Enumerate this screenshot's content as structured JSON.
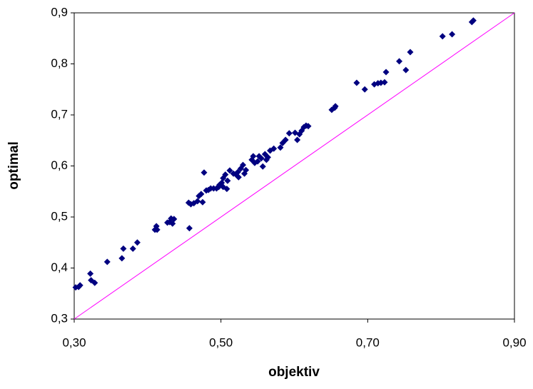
{
  "chart_data": {
    "type": "scatter",
    "x_label": "objektiv",
    "y_label": "optimal",
    "color": "#000080",
    "x": [
      0.302,
      0.306,
      0.308,
      0.322,
      0.323,
      0.328,
      0.345,
      0.365,
      0.367,
      0.38,
      0.386,
      0.41,
      0.412,
      0.413,
      0.427,
      0.43,
      0.432,
      0.434,
      0.436,
      0.457,
      0.456,
      0.459,
      0.463,
      0.468,
      0.47,
      0.473,
      0.475,
      0.477,
      0.48,
      0.483,
      0.486,
      0.49,
      0.494,
      0.497,
      0.498,
      0.501,
      0.503,
      0.503,
      0.506,
      0.508,
      0.509,
      0.512,
      0.517,
      0.52,
      0.523,
      0.524,
      0.527,
      0.53,
      0.532,
      0.534,
      0.542,
      0.544,
      0.546,
      0.55,
      0.552,
      0.555,
      0.557,
      0.56,
      0.562,
      0.564,
      0.567,
      0.572,
      0.581,
      0.584,
      0.588,
      0.593,
      0.601,
      0.604,
      0.607,
      0.61,
      0.613,
      0.616,
      0.619,
      0.651,
      0.655,
      0.656,
      0.685,
      0.696,
      0.709,
      0.714,
      0.718,
      0.723,
      0.725,
      0.743,
      0.752,
      0.758,
      0.802,
      0.815,
      0.842,
      0.844
    ],
    "values": [
      0.362,
      0.363,
      0.366,
      0.389,
      0.376,
      0.371,
      0.412,
      0.419,
      0.438,
      0.438,
      0.45,
      0.475,
      0.482,
      0.475,
      0.489,
      0.49,
      0.497,
      0.487,
      0.496,
      0.478,
      0.528,
      0.525,
      0.527,
      0.531,
      0.541,
      0.545,
      0.529,
      0.587,
      0.552,
      0.553,
      0.556,
      0.556,
      0.556,
      0.559,
      0.563,
      0.567,
      0.576,
      0.559,
      0.583,
      0.555,
      0.571,
      0.591,
      0.585,
      0.584,
      0.588,
      0.578,
      0.595,
      0.602,
      0.585,
      0.592,
      0.612,
      0.619,
      0.606,
      0.609,
      0.619,
      0.615,
      0.599,
      0.623,
      0.612,
      0.617,
      0.63,
      0.634,
      0.636,
      0.645,
      0.651,
      0.664,
      0.665,
      0.651,
      0.662,
      0.669,
      0.676,
      0.679,
      0.678,
      0.71,
      0.714,
      0.717,
      0.763,
      0.75,
      0.76,
      0.762,
      0.763,
      0.764,
      0.784,
      0.805,
      0.788,
      0.823,
      0.854,
      0.858,
      0.882,
      0.885
    ],
    "reference_line": {
      "x": [
        0.3,
        0.9
      ],
      "y": [
        0.3,
        0.9
      ],
      "color": "#ff00ff"
    },
    "xlim": [
      0.3,
      0.9
    ],
    "ylim": [
      0.3,
      0.9
    ],
    "xticks": [
      {
        "value": 0.3,
        "label": "0,30"
      },
      {
        "value": 0.5,
        "label": "0,50"
      },
      {
        "value": 0.7,
        "label": "0,70"
      },
      {
        "value": 0.9,
        "label": "0,90"
      }
    ],
    "yticks": [
      {
        "value": 0.3,
        "label": "0,3"
      },
      {
        "value": 0.4,
        "label": "0,4"
      },
      {
        "value": 0.5,
        "label": "0,5"
      },
      {
        "value": 0.6,
        "label": "0,6"
      },
      {
        "value": 0.7,
        "label": "0,7"
      },
      {
        "value": 0.8,
        "label": "0,8"
      },
      {
        "value": 0.9,
        "label": "0,9"
      }
    ]
  }
}
